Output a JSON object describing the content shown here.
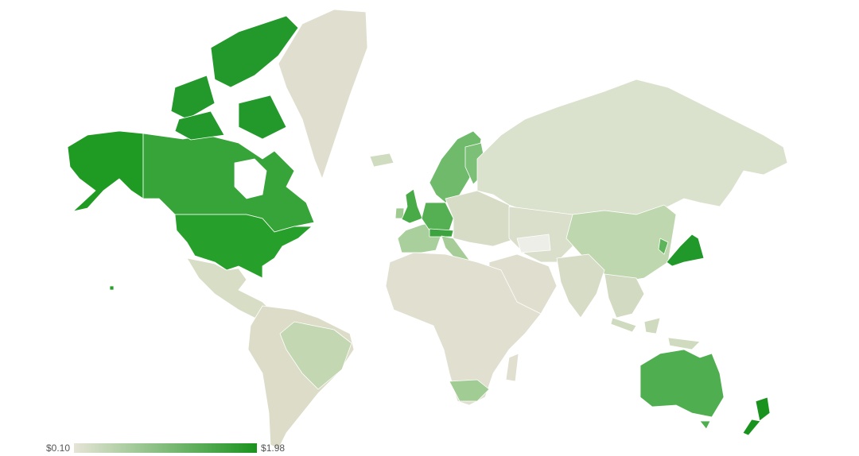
{
  "legend": {
    "min_label": "$0.10",
    "max_label": "$1.98",
    "min_color": "#e6e4d6",
    "max_color": "#1a931e"
  },
  "colors": {
    "background": "#ffffff",
    "water_cutout": "#ffffff",
    "no_data": "#f2f2ee"
  },
  "region_colors": {
    "alaska": "#1f9a22",
    "canada": "#36a438",
    "canada-arctic": "#22992a",
    "hudson-bay": "#ffffff",
    "usa": "#27a02b",
    "greenland": "#e0dfcf",
    "central-america": "#d8ddc6",
    "south-america": "#dcdcc8",
    "brazil": "#c3d8b2",
    "iceland": "#cfdcc0",
    "uk": "#48ab48",
    "ireland": "#9fcb92",
    "scandinavia": "#6fbb6b",
    "finland": "#7cbf77",
    "western-europe": "#a9cf9c",
    "germany": "#54b052",
    "alps": "#3da33f",
    "eastern-europe": "#d6dcc5",
    "italy": "#a6cd98",
    "russia": "#dae1cc",
    "central-asia": "#d9dfca",
    "turkey": "#eeeee8",
    "middle-east": "#e0dfcf",
    "china": "#bfd7ae",
    "india": "#d7dcc6",
    "southeast-asia": "#d2dbc1",
    "indonesia": "#cfdabe",
    "japan": "#21982a",
    "korea": "#5db45a",
    "africa": "#e1dfd0",
    "south-africa": "#a1cc93",
    "madagascar": "#e1dfd0",
    "australia": "#4fae4f",
    "tasmania": "#4fae4f",
    "new-zealand": "#1a931e",
    "hawaii": "#27a02b"
  }
}
